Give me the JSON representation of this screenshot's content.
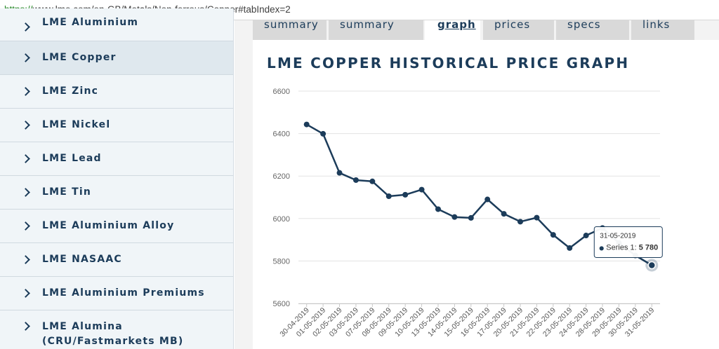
{
  "address_bar": {
    "scheme": "https://",
    "rest": "www.lme.com/en-GB/Metals/Non-ferrous/Copper#tabIndex=2"
  },
  "sidebar": {
    "items": [
      {
        "label": "LME Aluminium"
      },
      {
        "label": "LME Copper"
      },
      {
        "label": "LME Zinc"
      },
      {
        "label": "LME Nickel"
      },
      {
        "label": "LME Lead"
      },
      {
        "label": "LME Tin"
      },
      {
        "label": "LME Aluminium Alloy"
      },
      {
        "label": "LME NASAAC"
      },
      {
        "label": "LME Aluminium Premiums"
      },
      {
        "label": "LME Alumina (CRU/Fastmarkets MB)"
      }
    ],
    "active_index": 1
  },
  "tabs": [
    {
      "label": "summary"
    },
    {
      "label": "summary"
    },
    {
      "label": "graph"
    },
    {
      "label": "prices"
    },
    {
      "label": "specs"
    },
    {
      "label": "links"
    }
  ],
  "page": {
    "chart_heading": "LME COPPER HISTORICAL PRICE GRAPH"
  },
  "tooltip": {
    "date": "31-05-2019",
    "series_label": "Series 1: ",
    "value_text": "5 780"
  },
  "colors": {
    "line": "#1c3c5a",
    "heading": "#1c3c5a",
    "url_scheme": "#2a8a2a"
  },
  "chart_data": {
    "type": "line",
    "title": "LME COPPER HISTORICAL PRICE GRAPH",
    "xlabel": "",
    "ylabel": "",
    "ylim": [
      5600,
      6600
    ],
    "yticks": [
      5600,
      5800,
      6000,
      6200,
      6400,
      6600
    ],
    "grid": true,
    "x": [
      "30-04-2019",
      "01-05-2019",
      "02-05-2019",
      "03-05-2019",
      "07-05-2019",
      "08-05-2019",
      "09-05-2019",
      "10-05-2019",
      "13-05-2019",
      "14-05-2019",
      "15-05-2019",
      "16-05-2019",
      "17-05-2019",
      "20-05-2019",
      "21-05-2019",
      "22-05-2019",
      "23-05-2019",
      "24-05-2019",
      "28-05-2019",
      "29-05-2019",
      "30-05-2019",
      "31-05-2019"
    ],
    "series": [
      {
        "name": "Series 1",
        "values": [
          6443,
          6399,
          6215,
          6181,
          6175,
          6105,
          6112,
          6136,
          6044,
          6007,
          6003,
          6090,
          6022,
          5985,
          6004,
          5923,
          5861,
          5920,
          5955,
          5885,
          5826,
          5780
        ]
      }
    ],
    "highlighted_point": {
      "x": "31-05-2019",
      "y": 5780
    }
  }
}
